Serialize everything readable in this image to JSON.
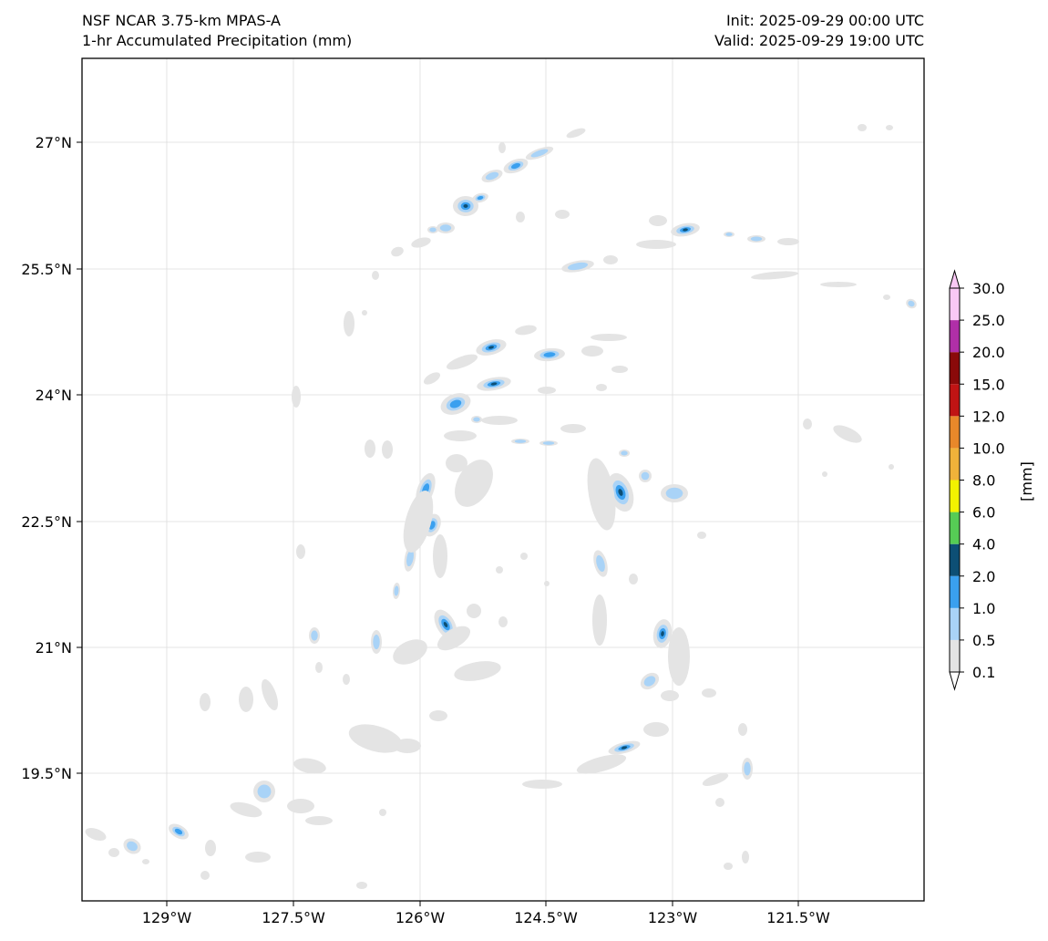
{
  "header": {
    "model": "NSF NCAR 3.75-km MPAS-A",
    "field": "1-hr Accumulated Precipitation (mm)",
    "init": "Init: 2025-09-29 00:00 UTC",
    "valid": "Valid: 2025-09-29 19:00 UTC"
  },
  "map": {
    "lon_ticks": [
      "129°W",
      "127.5°W",
      "126°W",
      "124.5°W",
      "123°W",
      "121.5°W"
    ],
    "lat_ticks": [
      "27°N",
      "25.5°N",
      "24°N",
      "22.5°N",
      "21°N",
      "19.5°N"
    ],
    "lon_range": [
      -130.0,
      -120.0
    ],
    "lat_range": [
      18.0,
      28.0
    ],
    "grid": true
  },
  "colorbar": {
    "label": "[mm]",
    "levels": [
      "0.1",
      "0.5",
      "1.0",
      "2.0",
      "4.0",
      "6.0",
      "8.0",
      "10.0",
      "12.0",
      "15.0",
      "20.0",
      "25.0",
      "30.0"
    ],
    "colors": [
      "#e4e4e4",
      "#a9d3f7",
      "#3aa0ef",
      "#0d4f75",
      "#56cc55",
      "#f2f200",
      "#f0b23a",
      "#e8882a",
      "#c01414",
      "#8a0a0a",
      "#b02fa8",
      "#f9c8f5"
    ]
  }
}
